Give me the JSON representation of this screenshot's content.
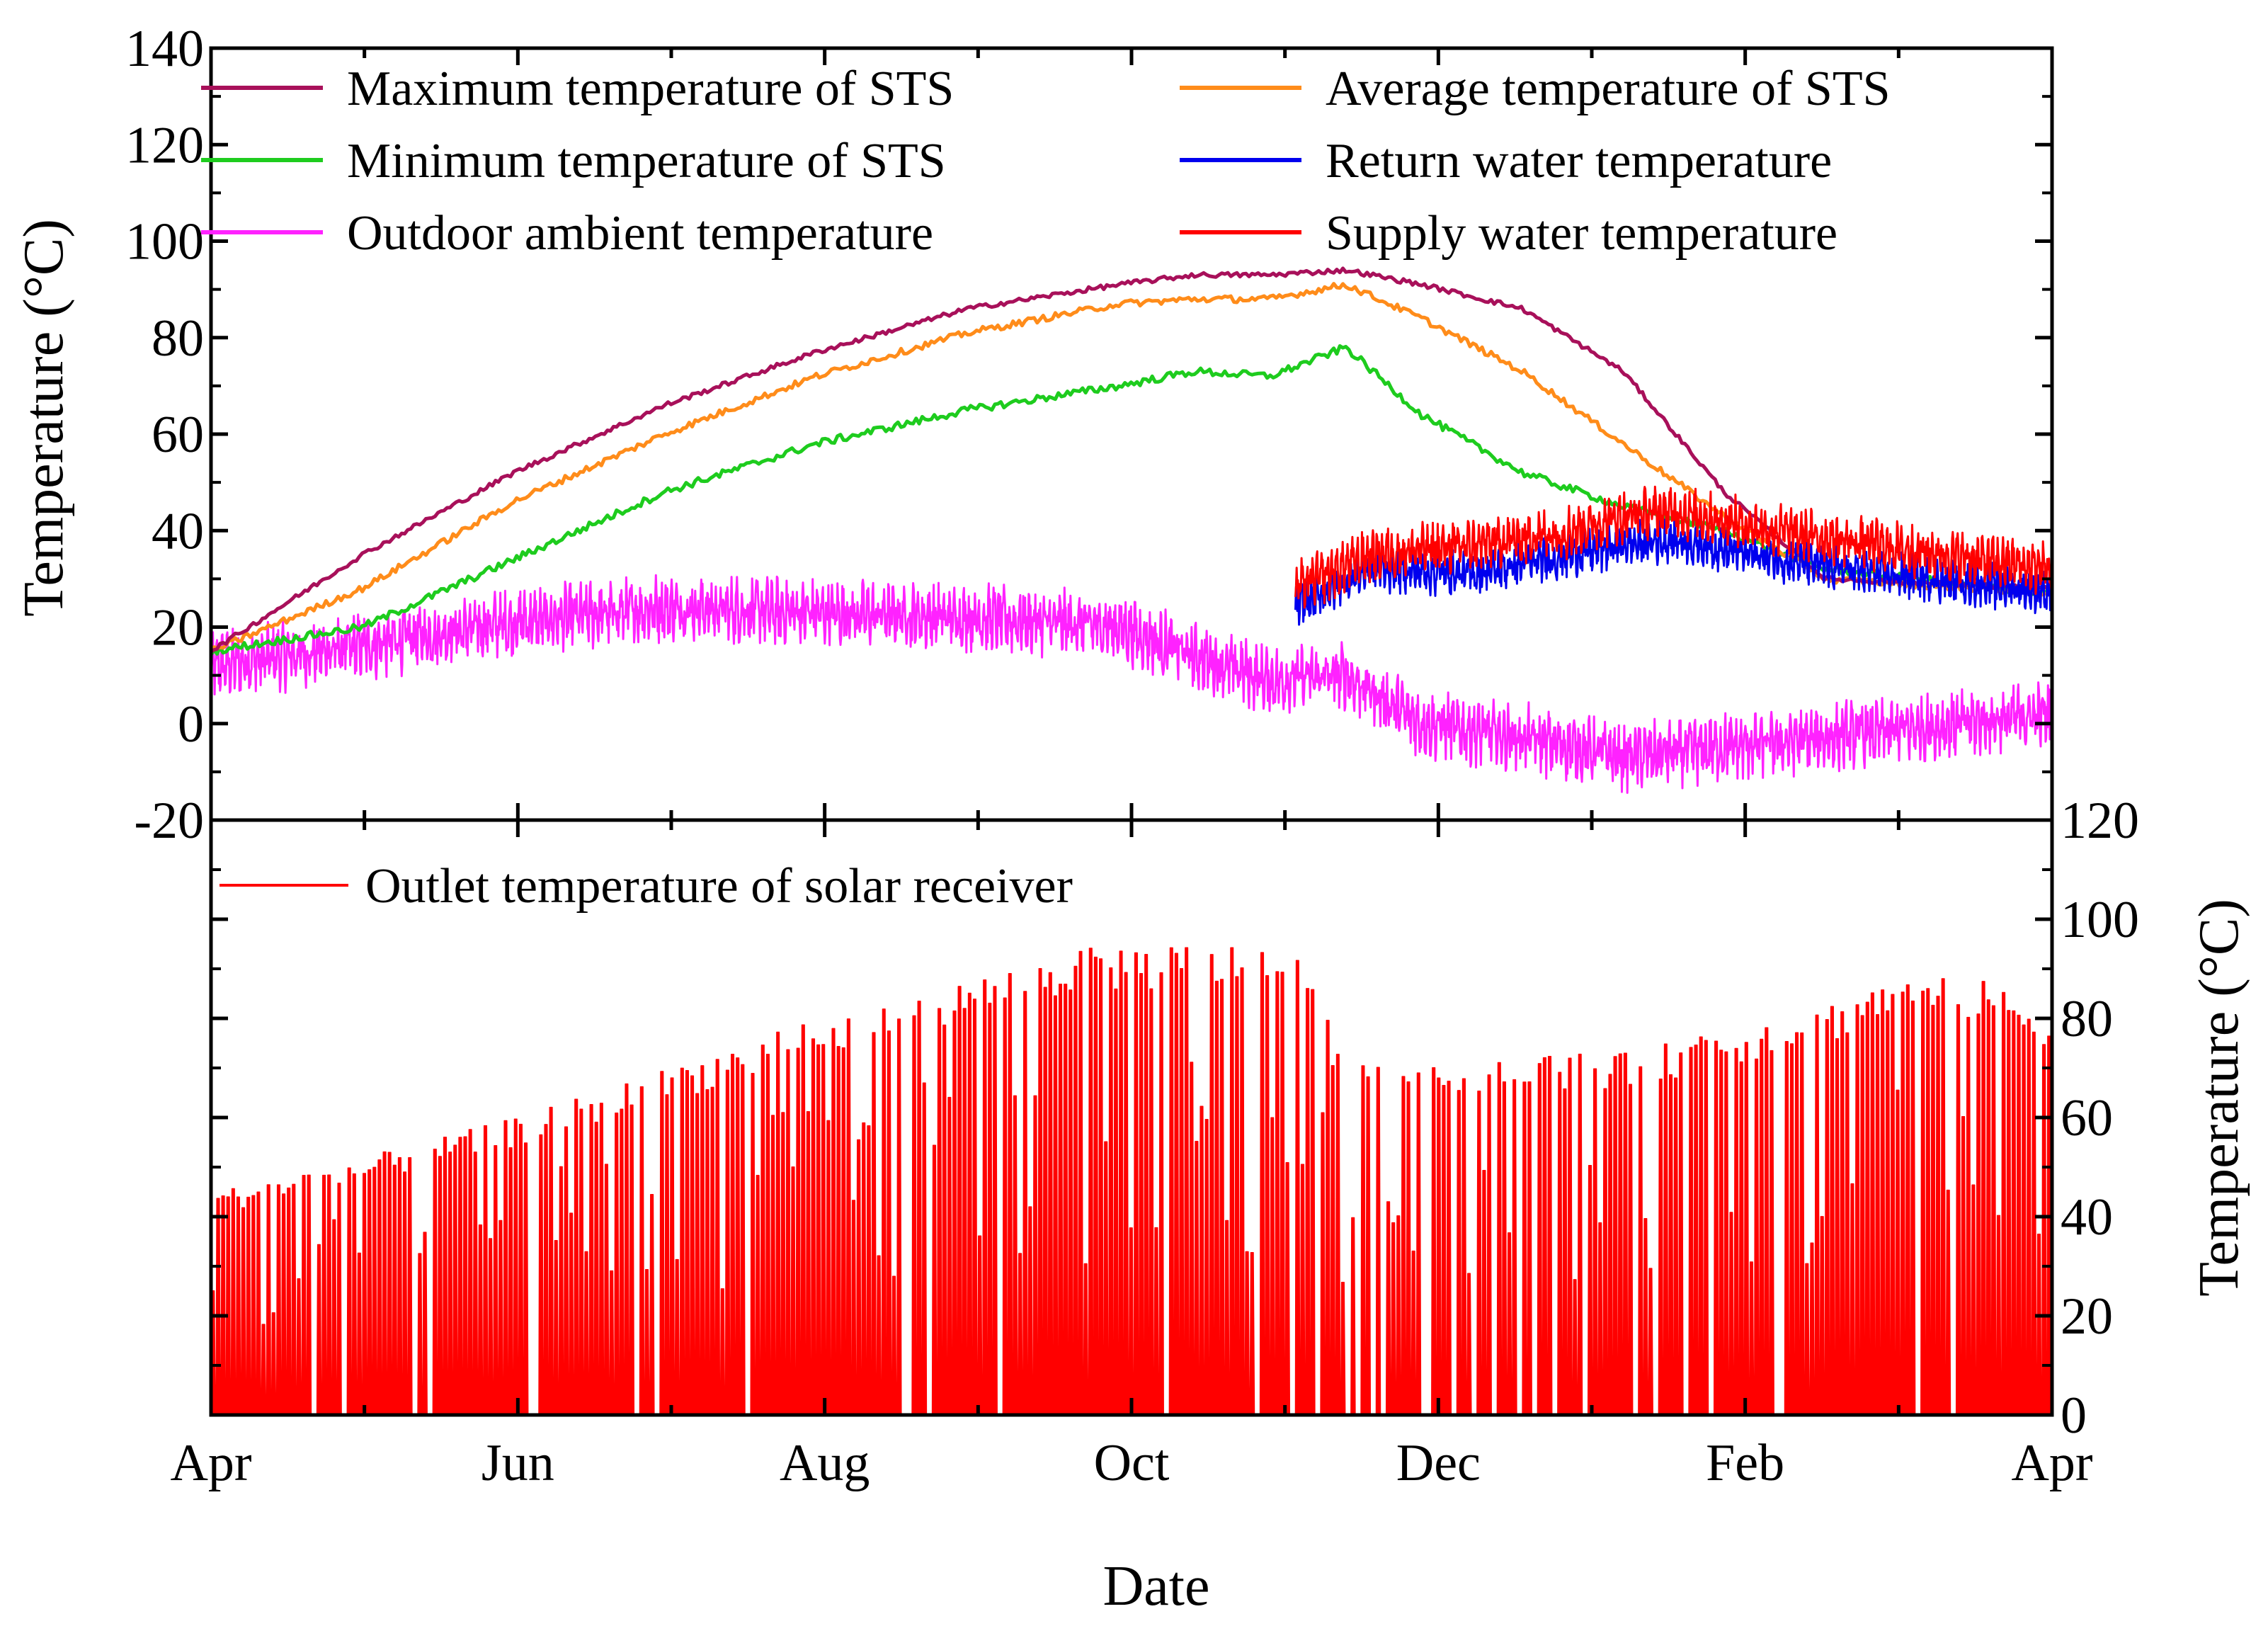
{
  "chart_data": [
    {
      "type": "line",
      "x_axis": {
        "label": "Date",
        "ticks": [
          "Apr",
          "Jun",
          "Aug",
          "Oct",
          "Dec",
          "Feb",
          "Apr"
        ],
        "range_days": [
          0,
          365
        ]
      },
      "y_axis": {
        "label": "Temperature (°C)",
        "ticks": [
          -20,
          0,
          20,
          40,
          60,
          80,
          100,
          120,
          140
        ],
        "range": [
          -20,
          140
        ]
      },
      "legend_position": "top, two columns",
      "series": [
        {
          "name": "Maximum temperature of STS",
          "color": "#A8105A",
          "x": [
            0,
            30,
            60,
            90,
            120,
            150,
            180,
            195,
            210,
            225,
            240,
            260,
            280,
            300,
            320,
            365
          ],
          "y": [
            15,
            35,
            52,
            66,
            77,
            86,
            91,
            93,
            93,
            94,
            91,
            86,
            73,
            48,
            30,
            28
          ]
        },
        {
          "name": "Average temperature of STS",
          "color": "#FF8C1A",
          "x": [
            0,
            30,
            60,
            90,
            120,
            150,
            180,
            195,
            210,
            225,
            240,
            260,
            280,
            300,
            320,
            365
          ],
          "y": [
            15,
            28,
            46,
            60,
            72,
            81,
            87,
            88,
            88,
            91,
            84,
            73,
            58,
            43,
            30,
            27
          ]
        },
        {
          "name": "Minimum temperature of STS",
          "color": "#1ECC1E",
          "x": [
            0,
            30,
            60,
            90,
            120,
            150,
            180,
            195,
            210,
            225,
            240,
            260,
            280,
            300,
            320,
            365
          ],
          "y": [
            15,
            20,
            34,
            48,
            58,
            65,
            70,
            73,
            72,
            78,
            64,
            52,
            45,
            40,
            32,
            27
          ]
        },
        {
          "name": "Return water temperature",
          "color": "#0000EE",
          "x": [
            215,
            230,
            250,
            270,
            280,
            290,
            300,
            310,
            330,
            350,
            365
          ],
          "y": [
            24,
            32,
            31,
            35,
            37,
            38,
            36,
            34,
            31,
            29,
            27
          ]
        },
        {
          "name": "Outdoor ambient temperature",
          "color": "#FF22FF",
          "x": [
            0,
            30,
            60,
            90,
            120,
            150,
            180,
            195,
            210,
            225,
            240,
            260,
            280,
            300,
            320,
            365
          ],
          "y": [
            12,
            16,
            21,
            24,
            23,
            22,
            20,
            14,
            9,
            10,
            0,
            -3,
            -7,
            -5,
            -3,
            2
          ]
        },
        {
          "name": "Supply water temperature",
          "color": "#FF0000",
          "x": [
            215,
            230,
            250,
            270,
            280,
            290,
            300,
            310,
            330,
            350,
            365
          ],
          "y": [
            28,
            35,
            37,
            40,
            43,
            44,
            42,
            40,
            37,
            34,
            32
          ]
        }
      ]
    },
    {
      "type": "line",
      "x_axis": {
        "label": "Date",
        "ticks": [
          "Apr",
          "Jun",
          "Aug",
          "Oct",
          "Dec",
          "Feb",
          "Apr"
        ],
        "range_days": [
          0,
          365
        ]
      },
      "y_axis": {
        "label": "Temperature (°C)",
        "ticks": [
          0,
          20,
          40,
          60,
          80,
          100,
          120
        ],
        "range": [
          0,
          120
        ],
        "side": "right"
      },
      "legend_position": "top-left",
      "series": [
        {
          "name": "Outlet temperature of solar receiver",
          "color": "#FF0000",
          "daily_peak_x": [
            0,
            30,
            60,
            90,
            120,
            150,
            165,
            180,
            195,
            210,
            214,
            225,
            240,
            260,
            280,
            300,
            320,
            335,
            350,
            365
          ],
          "daily_peak_y": [
            45,
            52,
            60,
            70,
            80,
            88,
            93,
            95,
            95,
            95,
            95,
            72,
            72,
            73,
            73,
            78,
            83,
            90,
            88,
            82
          ]
        }
      ]
    }
  ]
}
